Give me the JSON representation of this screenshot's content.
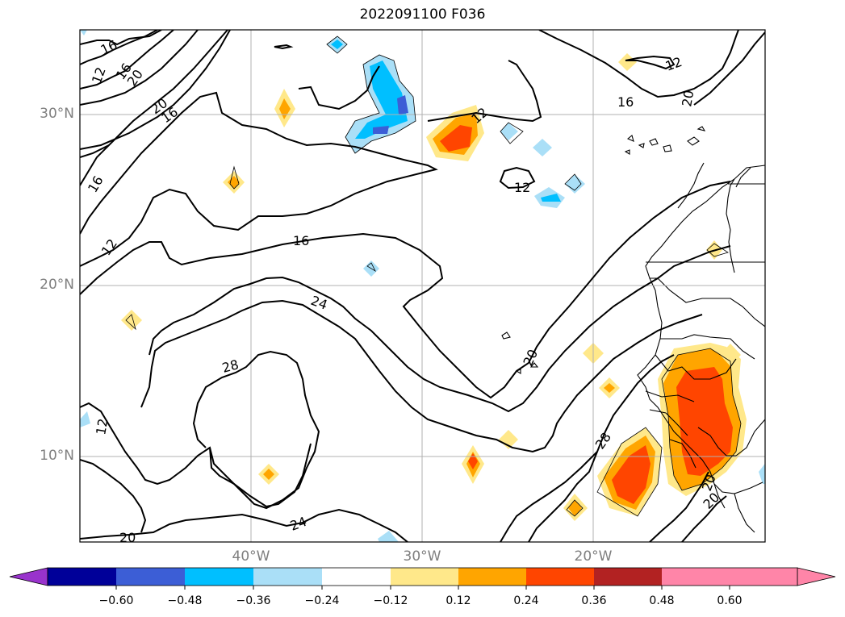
{
  "title": "2022091100 F036",
  "map": {
    "lat_labels": [
      "30°N",
      "20°N",
      "10°N"
    ],
    "lon_labels": [
      "40°W",
      "30°W",
      "20°W"
    ],
    "contour_labels": [
      "16",
      "12",
      "16",
      "20",
      "20",
      "16",
      "16",
      "12",
      "16",
      "12",
      "12",
      "24",
      "28",
      "20",
      "28",
      "12",
      "20",
      "24",
      "20",
      "20",
      "16",
      "12",
      "20"
    ]
  },
  "colorbar": {
    "ticks": [
      "−0.60",
      "−0.48",
      "−0.36",
      "−0.24",
      "−0.12",
      "0.12",
      "0.24",
      "0.36",
      "0.48",
      "0.60"
    ],
    "colors": [
      "#9933cc",
      "#000099",
      "#3c5ed6",
      "#00bfff",
      "#aadff7",
      "#ffffff",
      "#ffe88a",
      "#ffa500",
      "#ff4500",
      "#b22222",
      "#ff85a8"
    ]
  }
}
